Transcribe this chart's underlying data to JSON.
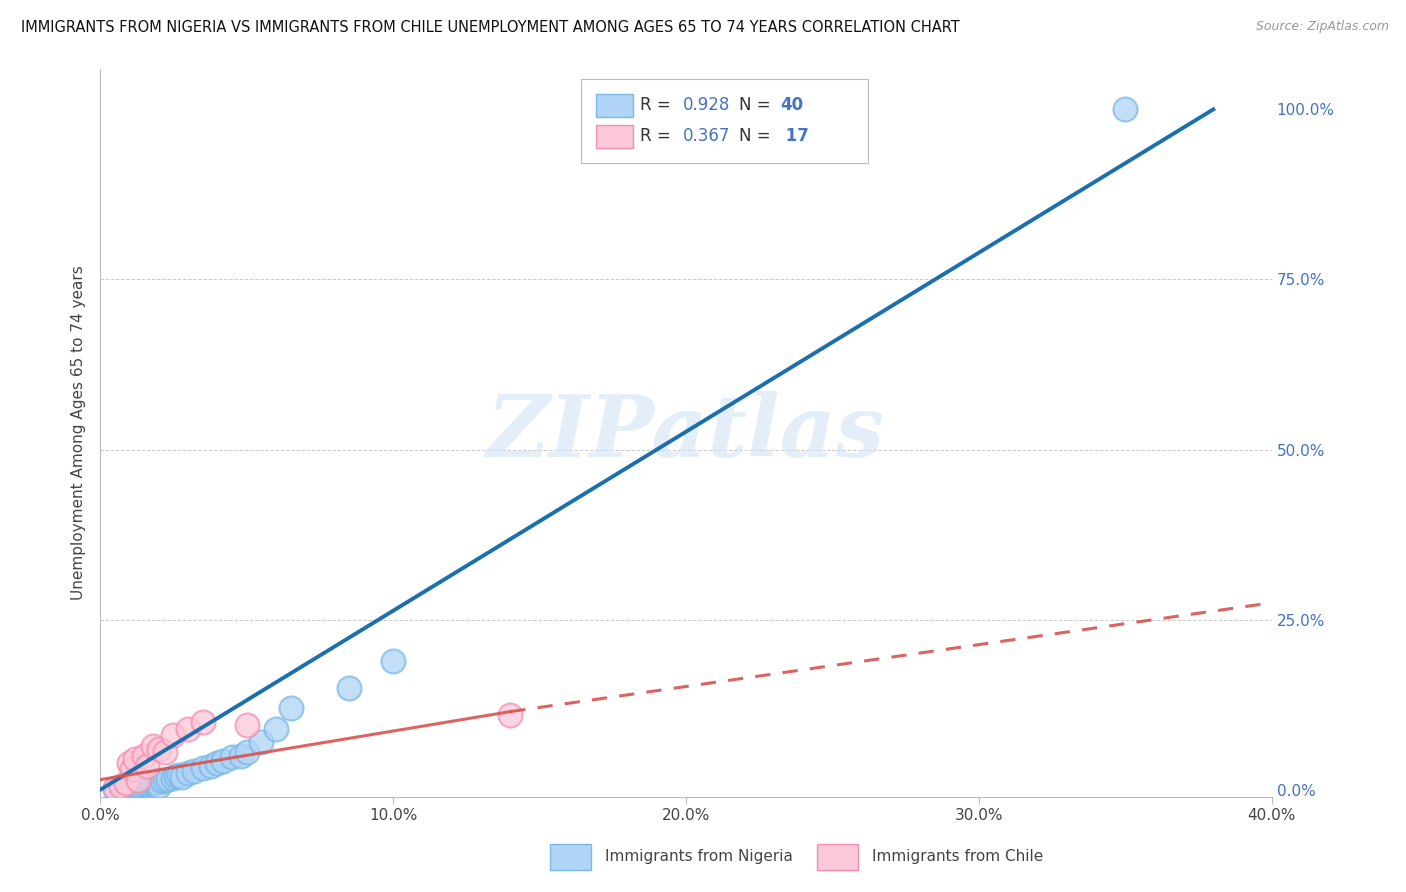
{
  "title": "IMMIGRANTS FROM NIGERIA VS IMMIGRANTS FROM CHILE UNEMPLOYMENT AMONG AGES 65 TO 74 YEARS CORRELATION CHART",
  "source": "Source: ZipAtlas.com",
  "ylabel": "Unemployment Among Ages 65 to 74 years",
  "xlim": [
    0.0,
    0.4
  ],
  "ylim": [
    -0.01,
    1.06
  ],
  "nigeria_R": "0.928",
  "nigeria_N": "40",
  "chile_R": "0.367",
  "chile_N": "17",
  "nigeria_color": "#7ab8e8",
  "nigeria_color_fill": "#afd4f5",
  "chile_color": "#f48fb1",
  "chile_color_fill": "#fac8d8",
  "nigeria_line_color": "#1a6faf",
  "chile_line_color": "#d9534f",
  "watermark": "ZIPatlas",
  "legend_bottom_1": "Immigrants from Nigeria",
  "legend_bottom_2": "Immigrants from Chile",
  "ytick_vals": [
    0.0,
    0.25,
    0.5,
    0.75,
    1.0
  ],
  "ytick_labels": [
    "0.0%",
    "25.0%",
    "50.0%",
    "75.0%",
    "100.0%"
  ],
  "xtick_vals": [
    0.0,
    0.1,
    0.2,
    0.3,
    0.4
  ],
  "xtick_labels": [
    "0.0%",
    "10.0%",
    "20.0%",
    "30.0%",
    "40.0%"
  ],
  "nig_line": [
    [
      0.0,
      0.0
    ],
    [
      0.38,
      1.0
    ]
  ],
  "chile_line_solid": [
    [
      0.0,
      0.015
    ],
    [
      0.14,
      0.115
    ]
  ],
  "chile_line_dash": [
    [
      0.14,
      0.115
    ],
    [
      0.4,
      0.275
    ]
  ],
  "nigeria_scatter_x": [
    0.005,
    0.007,
    0.008,
    0.009,
    0.01,
    0.01,
    0.011,
    0.012,
    0.013,
    0.014,
    0.015,
    0.016,
    0.017,
    0.018,
    0.018,
    0.019,
    0.02,
    0.02,
    0.021,
    0.022,
    0.023,
    0.025,
    0.026,
    0.027,
    0.028,
    0.03,
    0.032,
    0.035,
    0.038,
    0.04,
    0.042,
    0.045,
    0.048,
    0.05,
    0.055,
    0.06,
    0.065,
    0.085,
    0.1,
    0.35
  ],
  "nigeria_scatter_y": [
    0.002,
    0.003,
    0.004,
    0.003,
    0.005,
    0.002,
    0.004,
    0.006,
    0.005,
    0.007,
    0.008,
    0.009,
    0.01,
    0.008,
    0.012,
    0.011,
    0.015,
    0.005,
    0.013,
    0.014,
    0.016,
    0.018,
    0.02,
    0.022,
    0.019,
    0.025,
    0.028,
    0.032,
    0.035,
    0.04,
    0.042,
    0.048,
    0.05,
    0.055,
    0.07,
    0.09,
    0.12,
    0.15,
    0.19,
    1.0
  ],
  "chile_scatter_x": [
    0.005,
    0.007,
    0.009,
    0.01,
    0.011,
    0.012,
    0.013,
    0.015,
    0.016,
    0.018,
    0.02,
    0.022,
    0.025,
    0.03,
    0.035,
    0.05,
    0.14
  ],
  "chile_scatter_y": [
    0.003,
    0.005,
    0.01,
    0.04,
    0.03,
    0.045,
    0.015,
    0.05,
    0.035,
    0.065,
    0.06,
    0.055,
    0.08,
    0.09,
    0.1,
    0.095,
    0.11
  ]
}
